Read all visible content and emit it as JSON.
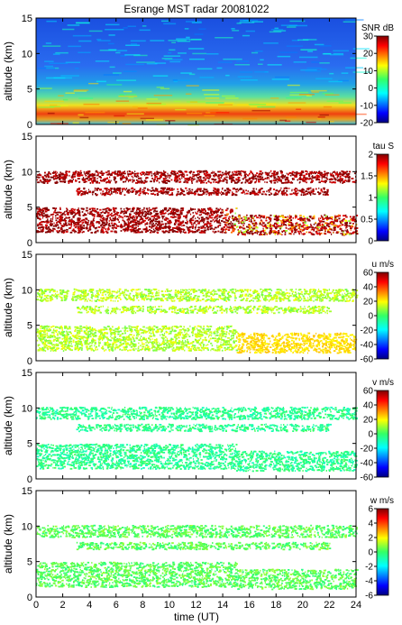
{
  "chart_data": {
    "title": "Esrange MST radar 20081022",
    "type": "heatmap",
    "xlabel": "time (UT)",
    "xlim": [
      0,
      24
    ],
    "xticks": [
      0,
      2,
      4,
      6,
      8,
      10,
      12,
      14,
      16,
      18,
      20,
      22,
      24
    ],
    "panels": [
      {
        "name": "snr",
        "ylabel": "altitude (km)",
        "ylim": [
          0,
          15
        ],
        "yticks": [
          0,
          5,
          10,
          15
        ],
        "colorbar_label": "SNR dB",
        "colorbar_range": [
          -20,
          30
        ],
        "colorbar_ticks": [
          -20,
          -10,
          0,
          10,
          20,
          30
        ],
        "coverage": "full"
      },
      {
        "name": "tau",
        "ylabel": "altitude (km)",
        "ylim": [
          0,
          15
        ],
        "yticks": [
          0,
          5,
          10,
          15
        ],
        "colorbar_label": "tau S",
        "colorbar_range": [
          0,
          2
        ],
        "colorbar_ticks": [
          0,
          0.5,
          1,
          1.5,
          2
        ],
        "typical_value": 1.95
      },
      {
        "name": "u",
        "ylabel": "altitude (km)",
        "ylim": [
          0,
          15
        ],
        "yticks": [
          0,
          5,
          10,
          15
        ],
        "colorbar_label": "u m/s",
        "colorbar_range": [
          -60,
          60
        ],
        "colorbar_ticks": [
          -60,
          -40,
          -20,
          0,
          20,
          40,
          60
        ],
        "typical_value": 12
      },
      {
        "name": "v",
        "ylabel": "altitude (km)",
        "ylim": [
          0,
          15
        ],
        "yticks": [
          0,
          5,
          10,
          15
        ],
        "colorbar_label": "v m/s",
        "colorbar_range": [
          -60,
          60
        ],
        "colorbar_ticks": [
          -60,
          -40,
          -20,
          0,
          20,
          40,
          60
        ],
        "typical_value": -5
      },
      {
        "name": "w",
        "ylabel": "altitude (km)",
        "ylim": [
          0,
          15
        ],
        "yticks": [
          0,
          5,
          10,
          15
        ],
        "colorbar_label": "w m/s",
        "colorbar_range": [
          -6,
          6
        ],
        "colorbar_ticks": [
          -6,
          -4,
          -2,
          0,
          2,
          4,
          6
        ],
        "typical_value": 0.3
      }
    ],
    "echo_layers_km": [
      {
        "alt_low": 8.5,
        "alt_high": 10.2,
        "t_start": 0,
        "t_end": 24
      },
      {
        "alt_low": 6.8,
        "alt_high": 7.8,
        "t_start": 3,
        "t_end": 22
      },
      {
        "alt_low": 1.5,
        "alt_high": 5.0,
        "t_start": 0,
        "t_end": 15
      },
      {
        "alt_low": 1.2,
        "alt_high": 4.0,
        "t_start": 15,
        "t_end": 24
      }
    ]
  }
}
